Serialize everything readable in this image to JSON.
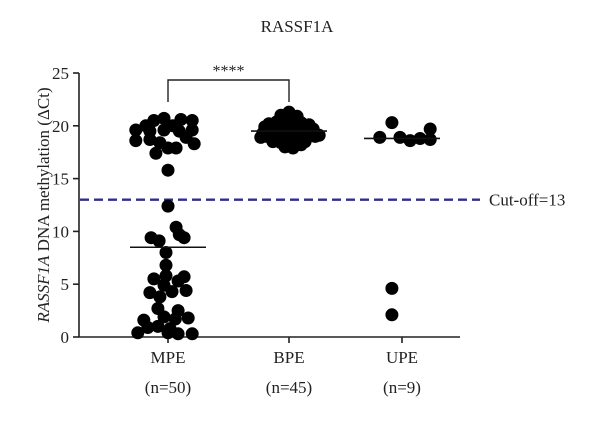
{
  "chart_data": {
    "type": "scatter",
    "title": "RASSF1A",
    "ylabel_italic": "RASSF1A",
    "ylabel_rest": " DNA methylation (ΔCt)",
    "ylim": [
      0,
      25
    ],
    "yticks": [
      "0",
      "5",
      "10",
      "15",
      "20",
      "25"
    ],
    "categories": [
      {
        "label": "MPE",
        "n": "(n=50)"
      },
      {
        "label": "BPE",
        "n": "(n=45)"
      },
      {
        "label": "UPE",
        "n": "(n=9)"
      }
    ],
    "cutoff": {
      "value": 13,
      "label": "Cut-off=13",
      "color": "#2e2e8c"
    },
    "significance": {
      "text": "****",
      "from": 0,
      "to": 1
    },
    "means": [
      8.5,
      19.5,
      18.8
    ],
    "point_color": "#000000",
    "series": [
      {
        "category": "MPE",
        "points": [
          [
            -0.8,
            18.6
          ],
          [
            -0.55,
            20.0
          ],
          [
            -0.35,
            20.5
          ],
          [
            -0.1,
            20.7
          ],
          [
            0.12,
            20.0
          ],
          [
            0.32,
            20.6
          ],
          [
            0.6,
            20.5
          ],
          [
            -0.8,
            19.6
          ],
          [
            -0.45,
            19.5
          ],
          [
            -0.1,
            19.6
          ],
          [
            0.28,
            19.5
          ],
          [
            0.6,
            19.6
          ],
          [
            -0.45,
            18.7
          ],
          [
            -0.2,
            18.4
          ],
          [
            0.45,
            18.9
          ],
          [
            0.65,
            18.3
          ],
          [
            -0.3,
            17.4
          ],
          [
            0.0,
            17.9
          ],
          [
            0.2,
            17.9
          ],
          [
            0.0,
            15.8
          ],
          [
            0.0,
            12.4
          ],
          [
            0.2,
            10.4
          ],
          [
            -0.42,
            9.4
          ],
          [
            0.4,
            9.4
          ],
          [
            -0.22,
            9.1
          ],
          [
            0.28,
            9.7
          ],
          [
            -0.05,
            8.0
          ],
          [
            -0.05,
            6.8
          ],
          [
            -0.05,
            5.8
          ],
          [
            0.4,
            5.7
          ],
          [
            -0.35,
            5.5
          ],
          [
            0.25,
            5.3
          ],
          [
            -0.1,
            4.9
          ],
          [
            0.1,
            4.3
          ],
          [
            -0.45,
            4.2
          ],
          [
            0.45,
            4.4
          ],
          [
            -0.2,
            3.8
          ],
          [
            -0.25,
            2.7
          ],
          [
            0.25,
            2.5
          ],
          [
            -0.6,
            1.6
          ],
          [
            0.5,
            1.8
          ],
          [
            -0.1,
            1.9
          ],
          [
            0.18,
            1.7
          ],
          [
            -0.5,
            0.9
          ],
          [
            -0.25,
            1.0
          ],
          [
            0.05,
            0.8
          ],
          [
            -0.75,
            0.4
          ],
          [
            0.25,
            0.3
          ],
          [
            0.6,
            0.3
          ],
          [
            0.0,
            0.4
          ]
        ]
      },
      {
        "category": "BPE",
        "points": [
          [
            -0.65,
            19.3
          ],
          [
            -0.55,
            19.0
          ],
          [
            -0.45,
            19.5
          ],
          [
            -0.35,
            18.9
          ],
          [
            -0.25,
            19.6
          ],
          [
            -0.15,
            19.1
          ],
          [
            -0.05,
            19.8
          ],
          [
            0.05,
            18.8
          ],
          [
            0.15,
            19.6
          ],
          [
            0.25,
            19.2
          ],
          [
            0.35,
            19.8
          ],
          [
            0.45,
            18.9
          ],
          [
            0.55,
            19.3
          ],
          [
            0.65,
            19.0
          ],
          [
            -0.5,
            20.2
          ],
          [
            -0.3,
            20.4
          ],
          [
            -0.1,
            20.6
          ],
          [
            0.1,
            20.5
          ],
          [
            0.3,
            20.3
          ],
          [
            0.5,
            20.1
          ],
          [
            -0.2,
            21.0
          ],
          [
            0.0,
            21.3
          ],
          [
            0.2,
            20.9
          ],
          [
            -0.4,
            18.5
          ],
          [
            -0.2,
            18.4
          ],
          [
            0.0,
            18.6
          ],
          [
            0.2,
            18.3
          ],
          [
            0.4,
            18.5
          ],
          [
            -0.1,
            18.0
          ],
          [
            0.1,
            17.9
          ],
          [
            0.3,
            18.2
          ],
          [
            -0.6,
            19.9
          ],
          [
            0.6,
            19.7
          ],
          [
            -0.7,
            18.9
          ],
          [
            0.75,
            19.1
          ],
          [
            -0.3,
            19.3
          ],
          [
            0.0,
            19.4
          ],
          [
            0.3,
            19.0
          ],
          [
            -0.15,
            20.0
          ],
          [
            0.15,
            20.0
          ],
          [
            -0.45,
            20.0
          ],
          [
            0.45,
            19.6
          ],
          [
            0.1,
            18.9
          ],
          [
            -0.05,
            20.3
          ],
          [
            0.25,
            19.9
          ]
        ]
      },
      {
        "category": "UPE",
        "points": [
          [
            -0.55,
            18.9
          ],
          [
            -0.25,
            20.3
          ],
          [
            -0.05,
            18.9
          ],
          [
            0.2,
            18.6
          ],
          [
            0.45,
            18.8
          ],
          [
            0.7,
            19.7
          ],
          [
            0.7,
            18.7
          ],
          [
            -0.25,
            4.6
          ],
          [
            -0.25,
            2.1
          ]
        ]
      }
    ]
  }
}
